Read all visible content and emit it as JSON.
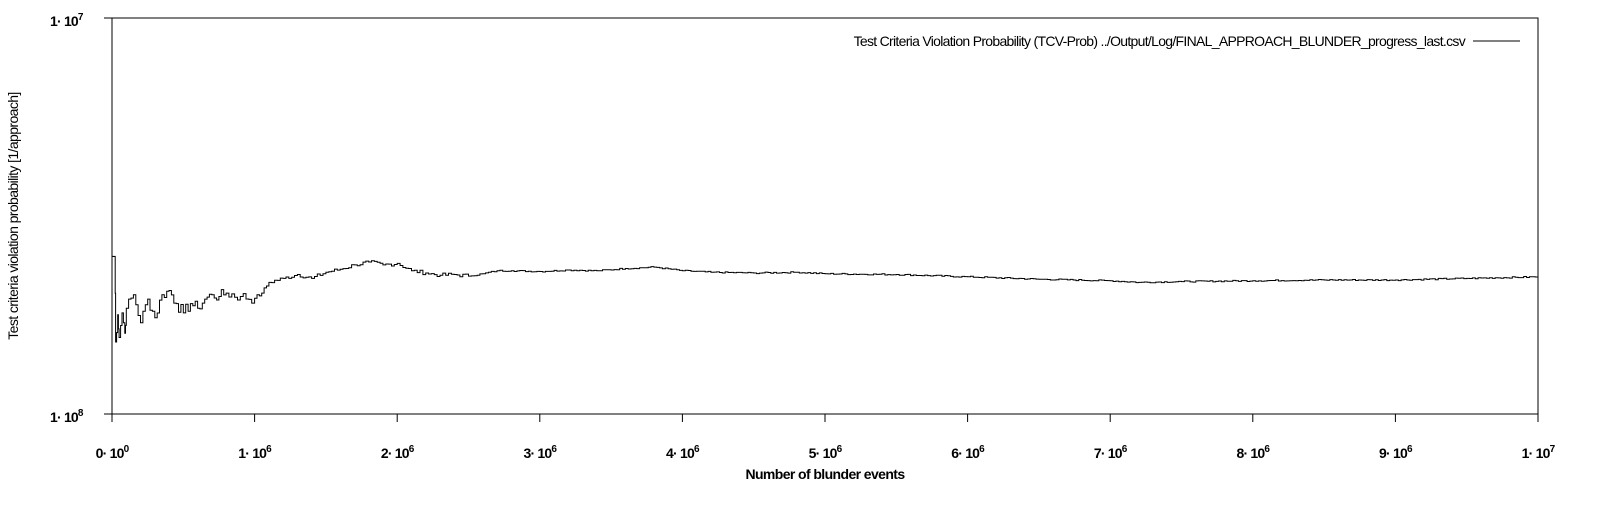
{
  "chart_data": {
    "type": "line",
    "title": "",
    "xlabel": "Number of blunder events",
    "ylabel": "Test criteria violation probability [1/approach]",
    "x_scale": "linear",
    "y_scale": "log",
    "xlim": [
      0,
      10000000
    ],
    "ylim": [
      1e-08,
      1e-07
    ],
    "grid": false,
    "legend_position": "top-right",
    "x_ticks": [
      {
        "value": 0,
        "mant": "0· 10",
        "exp": "0"
      },
      {
        "value": 1000000,
        "mant": "1· 10",
        "exp": "6"
      },
      {
        "value": 2000000,
        "mant": "2· 10",
        "exp": "6"
      },
      {
        "value": 3000000,
        "mant": "3· 10",
        "exp": "6"
      },
      {
        "value": 4000000,
        "mant": "4· 10",
        "exp": "6"
      },
      {
        "value": 5000000,
        "mant": "5· 10",
        "exp": "6"
      },
      {
        "value": 6000000,
        "mant": "6· 10",
        "exp": "6"
      },
      {
        "value": 7000000,
        "mant": "7· 10",
        "exp": "6"
      },
      {
        "value": 8000000,
        "mant": "8· 10",
        "exp": "6"
      },
      {
        "value": 9000000,
        "mant": "9· 10",
        "exp": "6"
      },
      {
        "value": 10000000,
        "mant": "1· 10",
        "exp": "7"
      }
    ],
    "y_ticks": [
      {
        "value": 1e-07,
        "mant": "1· 10",
        "exp": "7"
      },
      {
        "value": 1e-08,
        "mant": "1· 10",
        "exp": "8"
      }
    ],
    "series": [
      {
        "name": "Test Criteria Violation Probability (TCV-Prob) ../Output/Log/FINAL_APPROACH_BLUNDER_progress_last.csv",
        "color": "#000000",
        "x": [
          0,
          20000,
          25000,
          40000,
          50000,
          70000,
          90000,
          100000,
          150000,
          200000,
          250000,
          300000,
          350000,
          400000,
          450000,
          500000,
          550000,
          600000,
          650000,
          700000,
          750000,
          800000,
          900000,
          1000000,
          1050000,
          1100000,
          1200000,
          1300000,
          1400000,
          1500000,
          1600000,
          1700000,
          1800000,
          1900000,
          2000000,
          2100000,
          2200000,
          2300000,
          2400000,
          2500000,
          2600000,
          2700000,
          2800000,
          3000000,
          3200000,
          3400000,
          3600000,
          3800000,
          4000000,
          4200000,
          4500000,
          4800000,
          5000000,
          5500000,
          6000000,
          6500000,
          7000000,
          7200000,
          7500000,
          8000000,
          8500000,
          9000000,
          9500000,
          10000000
        ],
        "values": [
          2.5e-08,
          2.5e-08,
          1.52e-08,
          1.78e-08,
          1.56e-08,
          1.8e-08,
          1.6e-08,
          1.85e-08,
          2e-08,
          1.7e-08,
          1.95e-08,
          1.75e-08,
          2e-08,
          2.05e-08,
          1.9e-08,
          1.8e-08,
          1.9e-08,
          1.85e-08,
          1.95e-08,
          2e-08,
          1.98e-08,
          2.02e-08,
          1.98e-08,
          1.96e-08,
          2.02e-08,
          2.15e-08,
          2.2e-08,
          2.25e-08,
          2.2e-08,
          2.28e-08,
          2.32e-08,
          2.38e-08,
          2.42e-08,
          2.38e-08,
          2.4e-08,
          2.3e-08,
          2.27e-08,
          2.24e-08,
          2.25e-08,
          2.23e-08,
          2.26e-08,
          2.3e-08,
          2.3e-08,
          2.29e-08,
          2.31e-08,
          2.3e-08,
          2.33e-08,
          2.35e-08,
          2.3e-08,
          2.28e-08,
          2.27e-08,
          2.28e-08,
          2.26e-08,
          2.25e-08,
          2.22e-08,
          2.19e-08,
          2.17e-08,
          2.15e-08,
          2.16e-08,
          2.17e-08,
          2.18e-08,
          2.18e-08,
          2.2e-08,
          2.22e-08
        ]
      }
    ]
  }
}
